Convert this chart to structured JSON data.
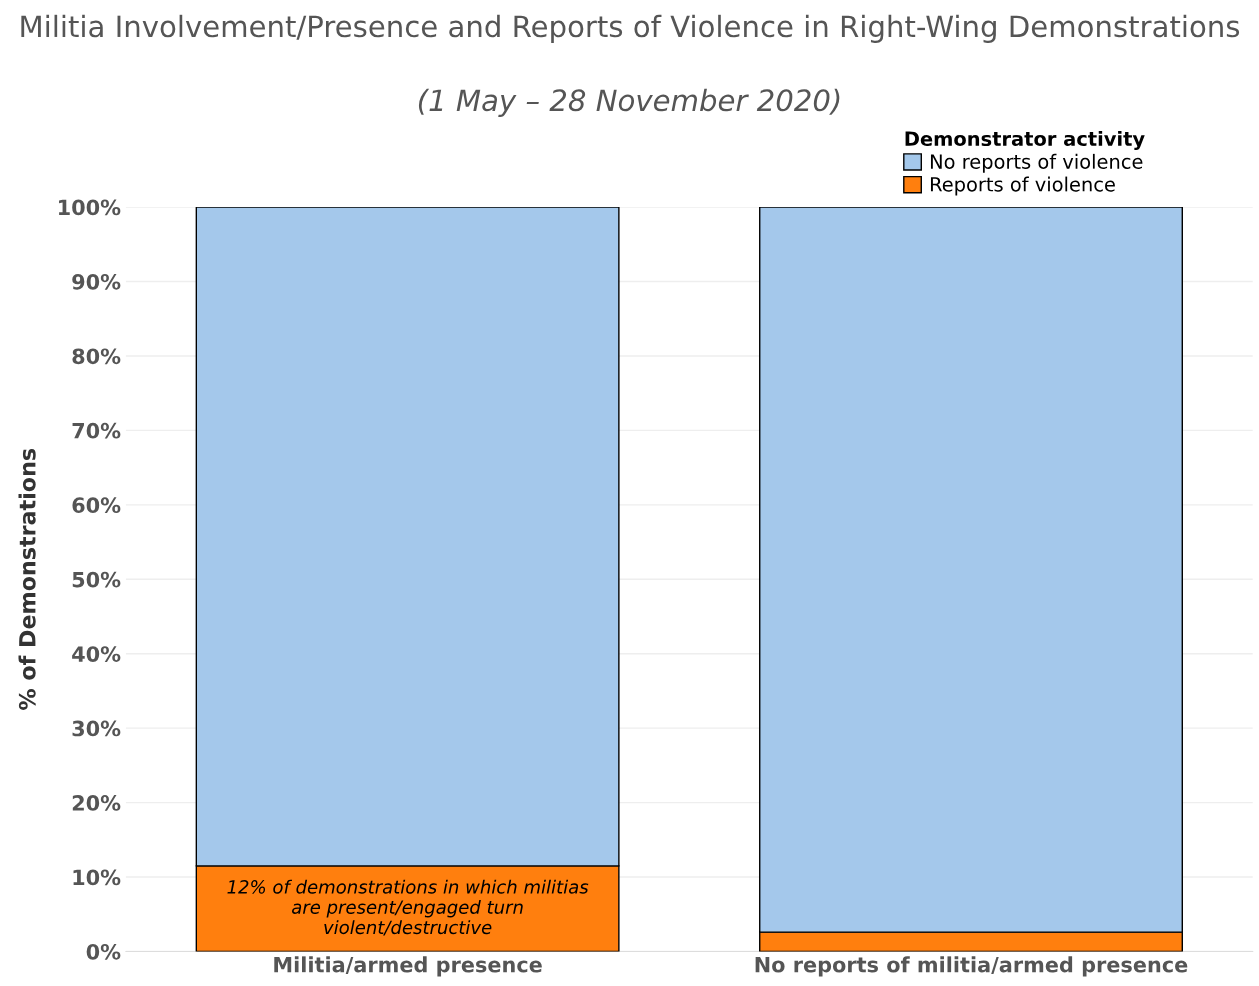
{
  "chart_data": {
    "type": "bar",
    "title": "Militia Involvement/Presence and Reports of Violence in Right-Wing Demonstrations",
    "subtitle": "(1 May – 28 November 2020)",
    "ylabel": "% of Demonstrations",
    "legend_title": "Demonstrator activity",
    "categories": [
      "Militia/armed presence",
      "No reports of militia/armed presence"
    ],
    "stacked": true,
    "series": [
      {
        "name": "Reports of violence",
        "color": "#ff7f0e",
        "values": [
          11.5,
          2.6
        ]
      },
      {
        "name": "No reports of violence",
        "color": "#a4c8eb",
        "values": [
          88.5,
          97.4
        ]
      }
    ],
    "ylim": [
      0,
      100
    ],
    "yticks": [
      {
        "value": 0,
        "label": "0%"
      },
      {
        "value": 10,
        "label": "10%"
      },
      {
        "value": 20,
        "label": "20%"
      },
      {
        "value": 30,
        "label": "30%"
      },
      {
        "value": 40,
        "label": "40%"
      },
      {
        "value": 50,
        "label": "50%"
      },
      {
        "value": 60,
        "label": "60%"
      },
      {
        "value": 70,
        "label": "70%"
      },
      {
        "value": 80,
        "label": "80%"
      },
      {
        "value": 90,
        "label": "90%"
      },
      {
        "value": 100,
        "label": "100%"
      }
    ],
    "grid": "y",
    "legend": "top right",
    "annotations": [
      "12% of demonstrations in which militias\nare present/engaged turn\nviolent/destructive"
    ]
  }
}
